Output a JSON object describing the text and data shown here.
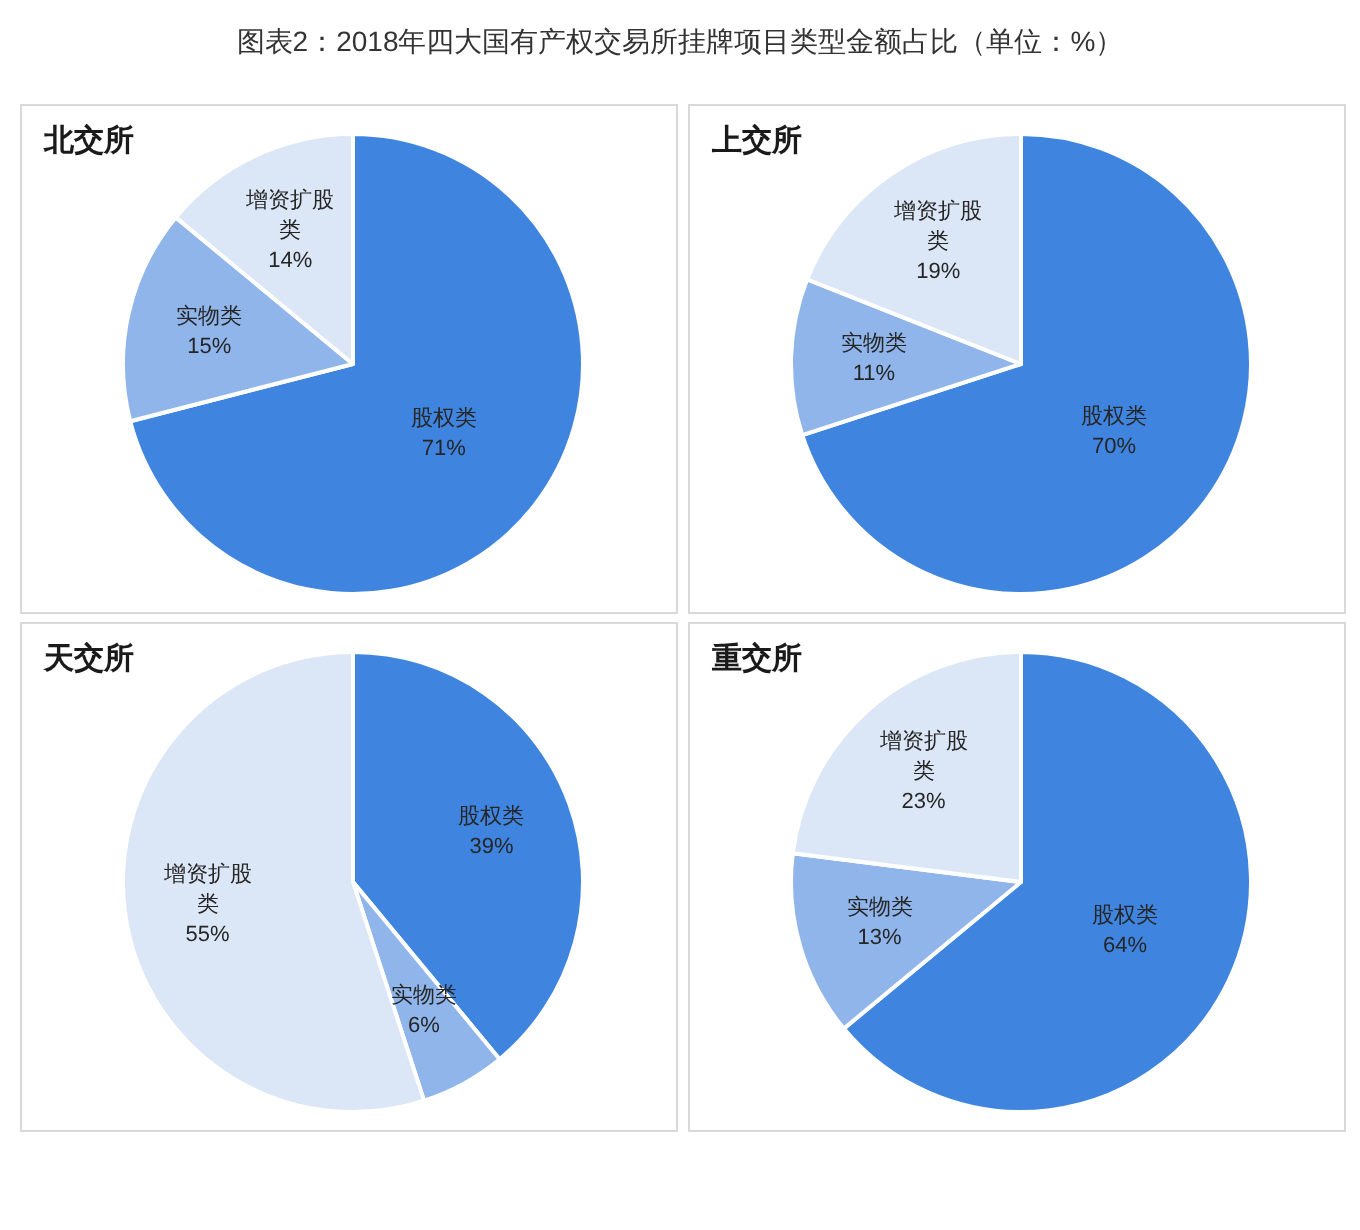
{
  "chart_data": [
    {
      "type": "pie",
      "title": "北交所",
      "annotations": [
        "图表2：2018年四大国有产权交易所挂牌项目类型金额占比（单位：%）"
      ],
      "categories": [
        "股权类",
        "实物类",
        "增资扩股类"
      ],
      "values": [
        71,
        15,
        14
      ],
      "value_labels": [
        "71%",
        "15%",
        "14%"
      ],
      "colors": [
        "#3f85df",
        "#8fb5eb",
        "#dbe6f6"
      ]
    },
    {
      "type": "pie",
      "title": "上交所",
      "categories": [
        "股权类",
        "实物类",
        "增资扩股类"
      ],
      "values": [
        70,
        11,
        19
      ],
      "value_labels": [
        "70%",
        "11%",
        "19%"
      ],
      "colors": [
        "#3f85df",
        "#8fb5eb",
        "#dbe6f6"
      ]
    },
    {
      "type": "pie",
      "title": "天交所",
      "categories": [
        "股权类",
        "实物类",
        "增资扩股类"
      ],
      "values": [
        39,
        6,
        55
      ],
      "value_labels": [
        "39%",
        "6%",
        "55%"
      ],
      "colors": [
        "#3f85df",
        "#8fb5eb",
        "#dbe6f6"
      ]
    },
    {
      "type": "pie",
      "title": "重交所",
      "categories": [
        "股权类",
        "实物类",
        "增资扩股类"
      ],
      "values": [
        64,
        13,
        23
      ],
      "value_labels": [
        "64%",
        "13%",
        "23%"
      ],
      "colors": [
        "#3f85df",
        "#8fb5eb",
        "#dbe6f6"
      ]
    }
  ]
}
